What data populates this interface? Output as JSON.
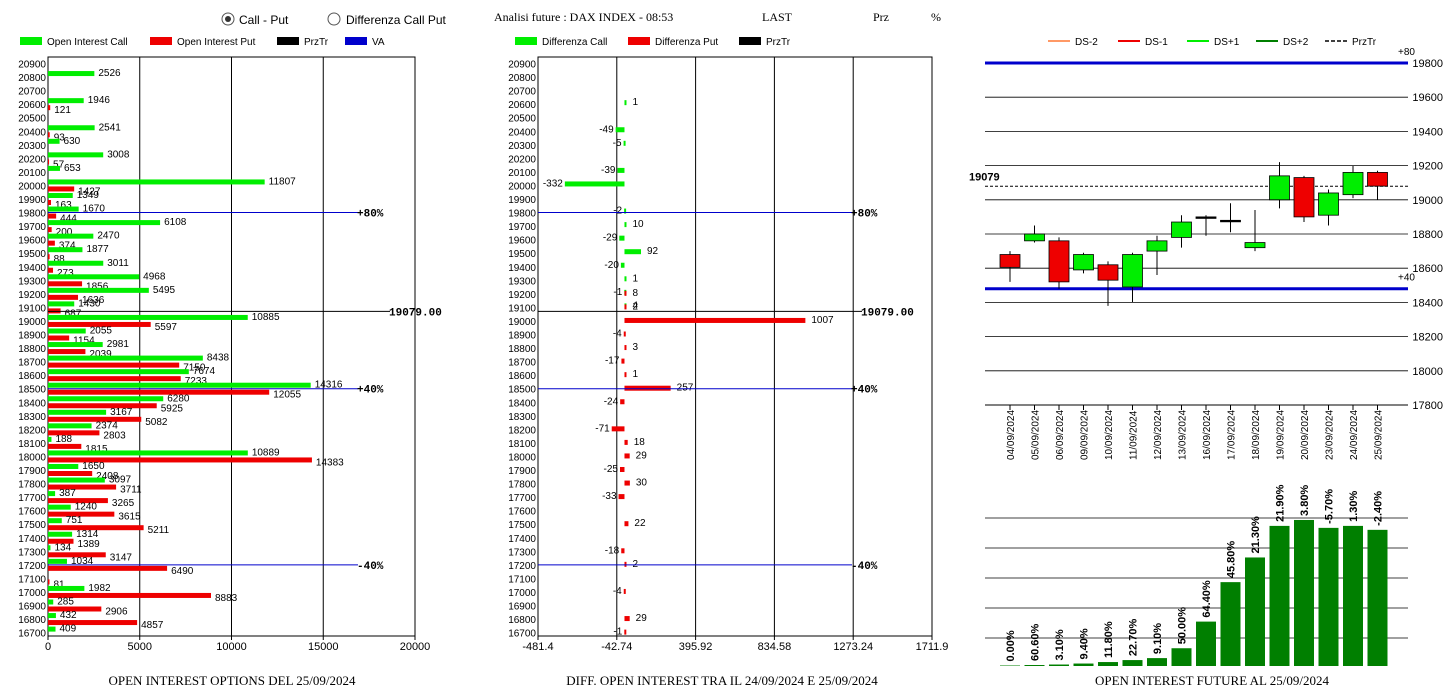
{
  "header": {
    "radio_call_put": "Call - Put",
    "radio_diff": "Differenza Call Put",
    "title": "Analisi future : DAX INDEX - 08:53",
    "last_label": "LAST",
    "prz_label": "Prz",
    "pct_label": "%"
  },
  "colors": {
    "green": "#00ee00",
    "red": "#ee0000",
    "black": "#000000",
    "blue": "#0000cc",
    "darkgreen": "#007f00"
  },
  "chart_data": [
    {
      "type": "bar",
      "orientation": "horizontal",
      "title": "OPEN INTEREST OPTIONS DEL 25/09/2024",
      "legend": [
        "Open Interest Call",
        "Open Interest Put",
        "PrzTr",
        "VA"
      ],
      "xlim": [
        0,
        20000
      ],
      "xticks": [
        "0",
        "5000",
        "10000",
        "15000",
        "20000"
      ],
      "strikes": [
        20900,
        20800,
        20700,
        20600,
        20500,
        20400,
        20300,
        20200,
        20100,
        20000,
        19900,
        19800,
        19700,
        19600,
        19500,
        19400,
        19300,
        19200,
        19100,
        19000,
        18900,
        18800,
        18700,
        18600,
        18500,
        18400,
        18300,
        18200,
        18100,
        18000,
        17900,
        17800,
        17700,
        17600,
        17500,
        17400,
        17300,
        17200,
        17100,
        17000,
        16900,
        16800,
        16700
      ],
      "series": [
        {
          "name": "Open Interest Call",
          "values": [
            null,
            2526,
            null,
            1946,
            null,
            2541,
            630,
            3008,
            653,
            11807,
            1349,
            1670,
            6108,
            2470,
            1877,
            3011,
            4968,
            5495,
            1430,
            10885,
            2055,
            2981,
            8438,
            7674,
            14316,
            6280,
            3167,
            2374,
            188,
            10889,
            1650,
            3097,
            387,
            1240,
            751,
            1314,
            134,
            1034,
            null,
            1982,
            285,
            432,
            409
          ]
        },
        {
          "name": "Open Interest Put",
          "values": [
            null,
            null,
            null,
            121,
            null,
            93,
            null,
            57,
            null,
            1427,
            163,
            444,
            200,
            374,
            88,
            273,
            1856,
            1636,
            687,
            5597,
            1154,
            2039,
            7150,
            7233,
            12055,
            5925,
            5082,
            2803,
            1815,
            14383,
            2408,
            3711,
            3265,
            3615,
            5211,
            1389,
            3147,
            6490,
            81,
            8883,
            2906,
            4857,
            null
          ]
        }
      ],
      "annotations": [
        {
          "label": "+80%",
          "strike": 19800
        },
        {
          "label": "19079.00",
          "strike": 19100
        },
        {
          "label": "+40%",
          "strike": 18500
        },
        {
          "label": "-40%",
          "strike": 17200
        }
      ]
    },
    {
      "type": "bar",
      "orientation": "horizontal",
      "title": "DIFF. OPEN INTEREST TRA IL 24/09/2024 E 25/09/2024",
      "legend": [
        "Differenza Call",
        "Differenza Put",
        "PrzTr"
      ],
      "xlim": [
        -481.4,
        1711.9
      ],
      "xticks": [
        "-481.4",
        "-42.74",
        "395.92",
        "834.58",
        "1273.24",
        "1711.9"
      ],
      "call_diff": [
        {
          "strike": 20600,
          "value": 1
        },
        {
          "strike": 20400,
          "value": -49
        },
        {
          "strike": 20300,
          "value": -5
        },
        {
          "strike": 20100,
          "value": -39
        },
        {
          "strike": 20000,
          "value": -332
        },
        {
          "strike": 19800,
          "value": -2
        },
        {
          "strike": 19700,
          "value": 10
        },
        {
          "strike": 19600,
          "value": -29
        },
        {
          "strike": 19500,
          "value": 92
        },
        {
          "strike": 19400,
          "value": -20
        },
        {
          "strike": 19300,
          "value": 1
        },
        {
          "strike": 19200,
          "value": -1
        },
        {
          "strike": 19100,
          "value": 4
        }
      ],
      "put_diff": [
        {
          "strike": 19200,
          "value": 8
        },
        {
          "strike": 19100,
          "value": 2
        },
        {
          "strike": 19000,
          "value": 1007
        },
        {
          "strike": 18900,
          "value": -4
        },
        {
          "strike": 18800,
          "value": 3
        },
        {
          "strike": 18700,
          "value": -17
        },
        {
          "strike": 18600,
          "value": 1
        },
        {
          "strike": 18500,
          "value": 257
        },
        {
          "strike": 18400,
          "value": -24
        },
        {
          "strike": 18200,
          "value": -71
        },
        {
          "strike": 18100,
          "value": 18
        },
        {
          "strike": 18000,
          "value": 29
        },
        {
          "strike": 17900,
          "value": -25
        },
        {
          "strike": 17800,
          "value": 30
        },
        {
          "strike": 17700,
          "value": -33
        },
        {
          "strike": 17500,
          "value": 22
        },
        {
          "strike": 17300,
          "value": -18
        },
        {
          "strike": 17200,
          "value": 2
        },
        {
          "strike": 17000,
          "value": -4
        },
        {
          "strike": 16800,
          "value": 29
        },
        {
          "strike": 16700,
          "value": -1
        }
      ],
      "annotations": [
        {
          "label": "+80%",
          "strike": 19800
        },
        {
          "label": "19079.00",
          "strike": 19100
        },
        {
          "label": "+40%",
          "strike": 18500
        },
        {
          "label": "-40%",
          "strike": 17200
        }
      ]
    },
    {
      "type": "candlestick",
      "legend": [
        "DS-2",
        "DS-1",
        "DS+1",
        "DS+2",
        "PrzTr"
      ],
      "ylim": [
        17800,
        19800
      ],
      "yticks": [
        "17800",
        "18000",
        "18200",
        "18400",
        "18600",
        "18800",
        "19000",
        "19200",
        "19400",
        "19600",
        "19800"
      ],
      "last_label": "19079",
      "last": 19079,
      "upper_line": {
        "value": 19800,
        "label": "+80"
      },
      "lower_line": {
        "value": 18480,
        "label": "+40"
      },
      "candles": [
        {
          "date": "04/09/2024",
          "open": 18680,
          "close": 18605,
          "high": 18700,
          "low": 18520
        },
        {
          "date": "05/09/2024",
          "open": 18760,
          "close": 18800,
          "high": 18850,
          "low": 18750
        },
        {
          "date": "06/09/2024",
          "open": 18760,
          "close": 18520,
          "high": 18780,
          "low": 18480
        },
        {
          "date": "09/09/2024",
          "open": 18590,
          "close": 18680,
          "high": 18690,
          "low": 18570
        },
        {
          "date": "10/09/2024",
          "open": 18620,
          "close": 18530,
          "high": 18640,
          "low": 18380
        },
        {
          "date": "11/09/2024",
          "open": 18490,
          "close": 18680,
          "high": 18690,
          "low": 18400
        },
        {
          "date": "12/09/2024",
          "open": 18700,
          "close": 18760,
          "high": 18790,
          "low": 18560
        },
        {
          "date": "13/09/2024",
          "open": 18780,
          "close": 18870,
          "high": 18910,
          "low": 18720
        },
        {
          "date": "16/09/2024",
          "open": 18900,
          "close": 18900,
          "high": 18910,
          "low": 18790
        },
        {
          "date": "17/09/2024",
          "open": 18880,
          "close": 18880,
          "high": 18980,
          "low": 18810
        },
        {
          "date": "18/09/2024",
          "open": 18720,
          "close": 18750,
          "high": 18940,
          "low": 18700
        },
        {
          "date": "19/09/2024",
          "open": 19000,
          "close": 19140,
          "high": 19220,
          "low": 18950
        },
        {
          "date": "20/09/2024",
          "open": 19130,
          "close": 18900,
          "high": 19140,
          "low": 18870
        },
        {
          "date": "23/09/2024",
          "open": 18910,
          "close": 19040,
          "high": 19060,
          "low": 18850
        },
        {
          "date": "24/09/2024",
          "open": 19030,
          "close": 19160,
          "high": 19200,
          "low": 19010
        },
        {
          "date": "25/09/2024",
          "open": 19160,
          "close": 19080,
          "high": 19170,
          "low": 19000
        }
      ]
    },
    {
      "type": "bar",
      "title": "OPEN INTEREST FUTURE AL 25/09/2024",
      "labels": [
        "0.00%",
        "60.60%",
        "3.10%",
        "9.40%",
        "11.80%",
        "22.70%",
        "9.10%",
        "50.00%",
        "64.40%",
        "45.80%",
        "21.30%",
        "21.90%",
        "3.80%",
        "-5.70%",
        "1.30%",
        "-2.40%"
      ],
      "values": [
        0.5,
        1,
        1.5,
        2.5,
        4,
        6,
        8,
        18,
        45,
        85,
        110,
        142,
        148,
        140,
        142,
        138
      ],
      "ylim": [
        0,
        150
      ]
    }
  ]
}
